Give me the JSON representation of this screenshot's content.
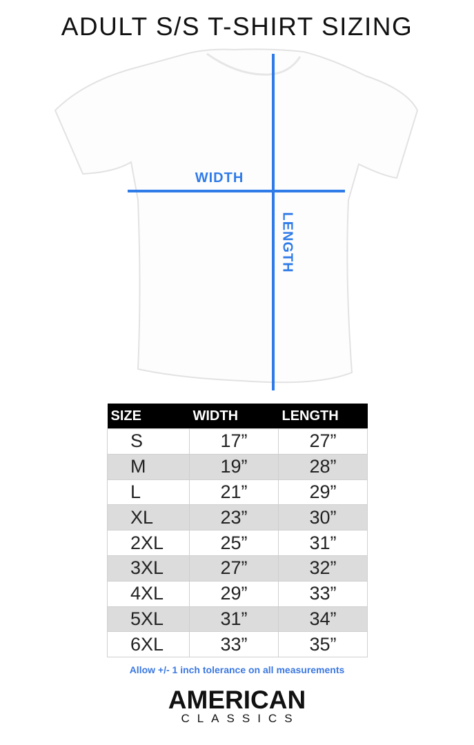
{
  "title": "ADULT S/S T-SHIRT SIZING",
  "diagram": {
    "width_label": "WIDTH",
    "length_label": "LENGTH",
    "line_color": "#2f7be8"
  },
  "table": {
    "headers": [
      "SIZE",
      "WIDTH",
      "LENGTH"
    ],
    "rows": [
      [
        "S",
        "17”",
        "27”"
      ],
      [
        "M",
        "19”",
        "28”"
      ],
      [
        "L",
        "21”",
        "29”"
      ],
      [
        "XL",
        "23”",
        "30”"
      ],
      [
        "2XL",
        "25”",
        "31”"
      ],
      [
        "3XL",
        "27”",
        "32”"
      ],
      [
        "4XL",
        "29”",
        "33”"
      ],
      [
        "5XL",
        "31”",
        "34”"
      ],
      [
        "6XL",
        "33”",
        "35”"
      ]
    ]
  },
  "note": "Allow +/- 1 inch tolerance on all measurements",
  "logo": {
    "line1": "AMERICAN",
    "line2": "CLASSICS"
  }
}
